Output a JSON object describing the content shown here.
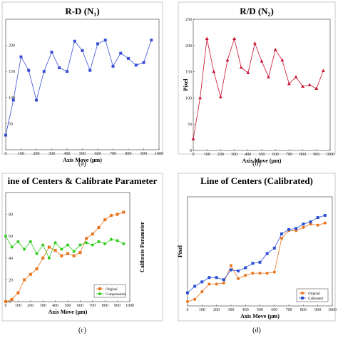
{
  "chart_data": [
    {
      "type": "line",
      "caption": "(a)",
      "title": "R-D (N₁)",
      "xlabel": "Axis Move (μm)",
      "ylabel": "",
      "xlim": [
        0,
        1000
      ],
      "ylim": [
        0,
        250
      ],
      "xticks": [
        "0",
        "100",
        "200",
        "300",
        "400",
        "500",
        "600",
        "700",
        "800",
        "900",
        "1000"
      ],
      "yticks": [
        "50",
        "100",
        "150",
        "200"
      ],
      "series": [
        {
          "name": "",
          "color": "#3a4fd6",
          "marker": "square",
          "x": [
            0,
            50,
            100,
            150,
            200,
            250,
            300,
            350,
            400,
            450,
            500,
            550,
            600,
            650,
            700,
            750,
            800,
            850,
            900,
            950
          ],
          "y": [
            28,
            95,
            178,
            152,
            95,
            150,
            187,
            157,
            150,
            208,
            190,
            152,
            203,
            210,
            160,
            185,
            175,
            162,
            167,
            210
          ]
        }
      ]
    },
    {
      "type": "line",
      "caption": "(b)",
      "title": "R/D (N₂)",
      "xlabel": "Axis Move (μm)",
      "ylabel": "Pixel",
      "xlim": [
        0,
        1000
      ],
      "ylim": [
        0,
        250
      ],
      "xticks": [
        "0",
        "100",
        "200",
        "300",
        "400",
        "500",
        "600",
        "700",
        "800",
        "900",
        "1000"
      ],
      "yticks": [
        "0",
        "50",
        "100",
        "150",
        "200",
        "250"
      ],
      "series": [
        {
          "name": "",
          "color": "#c8102e",
          "marker": "triangle",
          "x": [
            0,
            50,
            100,
            150,
            200,
            250,
            300,
            350,
            400,
            450,
            500,
            550,
            600,
            650,
            700,
            750,
            800,
            850,
            900,
            950
          ],
          "y": [
            22,
            100,
            213,
            150,
            102,
            172,
            213,
            158,
            148,
            204,
            170,
            140,
            192,
            172,
            127,
            140,
            122,
            125,
            118,
            152
          ]
        }
      ]
    },
    {
      "type": "line",
      "caption": "(c)",
      "title": "ine of Centers & Calibrate Parameter",
      "xlabel": "Axis Move (μm)",
      "ylabel": "Calibrate Parameter",
      "xlim": [
        0,
        1000
      ],
      "ylim": [
        0,
        100
      ],
      "xticks": [
        "0",
        "100",
        "200",
        "300",
        "400",
        "500",
        "600",
        "700",
        "800",
        "900",
        "1000"
      ],
      "yticks": [
        "0",
        "20",
        "40",
        "60",
        "80"
      ],
      "legend": "bottom-right",
      "series": [
        {
          "name": "Original",
          "color": "#e8731a",
          "marker": "square",
          "x": [
            0,
            50,
            100,
            150,
            200,
            250,
            300,
            350,
            400,
            450,
            500,
            550,
            600,
            650,
            700,
            750,
            800,
            850,
            900,
            950
          ],
          "y": [
            0,
            2,
            8,
            20,
            25,
            30,
            40,
            50,
            47,
            42,
            44,
            42,
            45,
            58,
            62,
            68,
            75,
            79,
            80,
            82
          ]
        },
        {
          "name": "Compensation",
          "color": "#33cc1f",
          "marker": "circle",
          "x": [
            0,
            50,
            100,
            150,
            200,
            250,
            300,
            350,
            400,
            450,
            500,
            550,
            600,
            650,
            700,
            750,
            800,
            850,
            900,
            950
          ],
          "y": [
            60,
            50,
            55,
            48,
            55,
            44,
            52,
            40,
            54,
            48,
            52,
            46,
            52,
            54,
            52,
            55,
            53,
            57,
            56,
            53
          ]
        }
      ]
    },
    {
      "type": "line",
      "caption": "(d)",
      "title": "Line of Centers (Calibrated)",
      "xlabel": "Axis Move (μm)",
      "ylabel": "Pixel",
      "xlim": [
        0,
        1000
      ],
      "ylim": [
        0,
        100
      ],
      "xticks": [
        "0",
        "100",
        "200",
        "300",
        "400",
        "500",
        "600",
        "700",
        "800",
        "900",
        "1000"
      ],
      "yticks": [],
      "legend": "bottom-right",
      "series": [
        {
          "name": "Original",
          "color": "#e8731a",
          "marker": "circle",
          "x": [
            0,
            50,
            100,
            150,
            200,
            250,
            300,
            350,
            400,
            450,
            500,
            550,
            600,
            650,
            700,
            750,
            800,
            850,
            900,
            950
          ],
          "y": [
            4,
            6,
            13,
            20,
            20,
            21,
            37,
            25,
            28,
            30,
            30,
            30,
            31,
            62,
            69,
            69,
            72,
            75,
            74,
            76
          ]
        },
        {
          "name": "Calibrated",
          "color": "#2c4fd6",
          "marker": "square",
          "x": [
            0,
            50,
            100,
            150,
            200,
            250,
            300,
            350,
            400,
            450,
            500,
            550,
            600,
            650,
            700,
            750,
            800,
            850,
            900,
            950
          ],
          "y": [
            12,
            18,
            22,
            26,
            26,
            24,
            33,
            32,
            35,
            39,
            40,
            48,
            53,
            66,
            70,
            71,
            75,
            77,
            81,
            83
          ]
        }
      ]
    }
  ]
}
